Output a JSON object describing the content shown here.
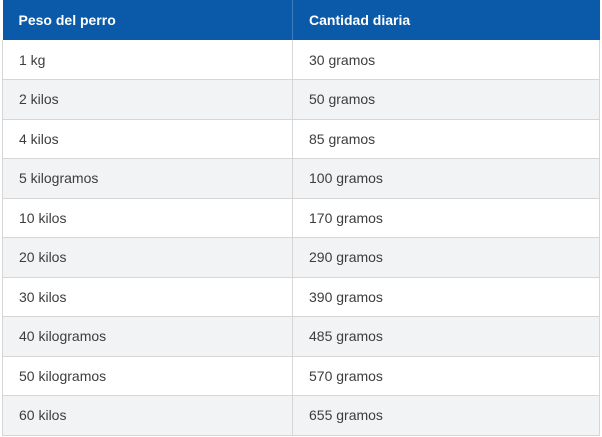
{
  "table": {
    "headers": [
      "Peso del perro",
      "Cantidad diaria"
    ],
    "rows": [
      [
        "1 kg",
        "30 gramos"
      ],
      [
        "2 kilos",
        "50 gramos"
      ],
      [
        "4 kilos",
        "85 gramos"
      ],
      [
        "5 kilogramos",
        "100 gramos"
      ],
      [
        "10 kilos",
        "170 gramos"
      ],
      [
        "20 kilos",
        "290 gramos"
      ],
      [
        "30 kilos",
        "390 gramos"
      ],
      [
        "40 kilogramos",
        "485 gramos"
      ],
      [
        "50 kilogramos",
        "570 gramos"
      ],
      [
        "60 kilos",
        "655 gramos"
      ]
    ]
  },
  "colors": {
    "header_background": "#0b5aa9",
    "header_text": "#ffffff",
    "row_alt_background": "#f1f3f4",
    "body_text": "#3d3d3d"
  }
}
